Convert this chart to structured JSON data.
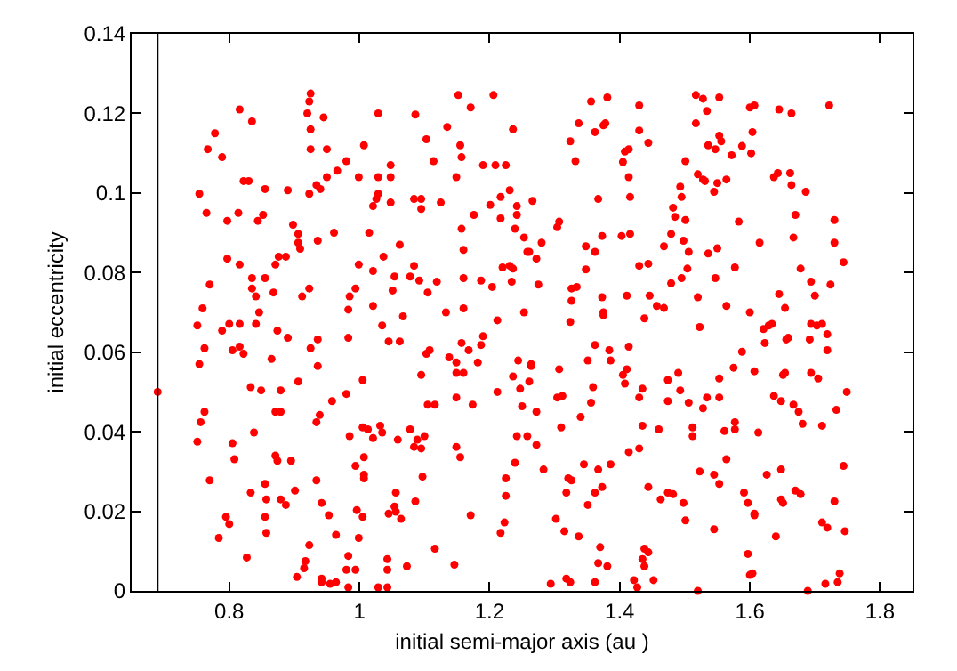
{
  "chart_data": {
    "type": "scatter",
    "xlabel": "initial semi-major axis (au )",
    "ylabel": "initial eccentricity",
    "x": [
      0.754,
      0.765,
      0.767,
      0.778,
      0.789,
      0.816,
      0.835,
      0.822,
      0.83,
      0.797,
      0.814,
      0.855,
      0.852,
      0.844,
      0.797,
      0.816,
      0.77,
      0.835,
      0.855,
      0.835,
      0.841,
      0.868,
      0.759,
      0.846,
      0.89,
      0.898,
      0.876,
      0.887,
      0.871,
      0.906,
      0.906,
      0.909,
      0.92,
      0.923,
      0.925,
      0.925,
      0.925,
      0.945,
      0.95,
      0.923,
      0.934,
      0.94,
      0.95,
      0.966,
      0.98,
      1.007,
      0.999,
      1.029,
      1.029,
      1.048,
      1.048,
      1.029,
      1.026,
      1.021,
      1.048,
      0.961,
      0.936,
      1.015,
      1.062,
      1.037,
      0.999,
      1.021,
      1.054,
      1.051,
      0.923,
      0.912,
      0.994,
      0.985,
      0.983,
      1.021,
      1.067,
      1.086,
      1.103,
      1.114,
      1.135,
      1.152,
      1.171,
      1.155,
      1.157,
      1.149,
      1.206,
      1.236,
      1.19,
      1.209,
      1.225,
      1.084,
      1.095,
      1.095,
      1.125,
      1.217,
      1.231,
      1.201,
      1.242,
      1.176,
      1.217,
      1.242,
      1.157,
      1.239,
      1.253,
      1.16,
      1.258,
      1.084,
      1.092,
      1.078,
      1.119,
      1.105,
      1.16,
      1.187,
      1.204,
      1.22,
      1.231,
      1.236,
      1.234,
      1.133,
      1.16,
      1.253,
      1.356,
      1.381,
      1.43,
      1.337,
      1.324,
      1.332,
      1.362,
      1.375,
      1.378,
      1.43,
      1.444,
      1.408,
      1.414,
      1.405,
      1.414,
      1.367,
      1.416,
      1.517,
      1.528,
      1.553,
      1.534,
      1.517,
      1.6,
      1.607,
      1.645,
      1.664,
      1.722,
      1.553,
      1.556,
      1.536,
      1.547,
      1.588,
      1.604,
      1.572,
      1.602,
      1.501,
      1.52,
      1.528,
      1.531,
      1.55,
      1.564,
      1.545,
      1.493,
      1.495,
      1.643,
      1.637,
      1.662,
      1.664,
      1.686,
      1.266,
      1.307,
      1.304,
      1.28,
      1.261,
      1.272,
      1.275,
      1.348,
      1.362,
      1.373,
      1.403,
      1.416,
      1.348,
      1.43,
      1.444,
      1.326,
      1.334,
      1.326,
      1.373,
      1.411,
      1.375,
      1.446,
      1.457,
      1.468,
      1.438,
      1.479,
      1.495,
      1.504,
      1.468,
      1.479,
      1.498,
      1.506,
      1.501,
      1.485,
      1.482,
      1.52,
      1.536,
      1.55,
      1.547,
      1.564,
      1.577,
      1.583,
      1.6,
      1.615,
      1.645,
      1.654,
      1.667,
      1.67,
      1.678,
      1.694,
      1.7,
      1.724,
      1.73,
      1.73,
      1.744,
      0.69,
      0.751,
      0.762,
      0.754,
      0.762,
      0.756,
      0.751,
      0.77,
      0.789,
      0.8,
      0.816,
      0.805,
      0.816,
      0.822,
      0.841,
      0.833,
      0.849,
      0.838,
      0.805,
      0.808,
      0.833,
      0.795,
      0.8,
      0.784,
      0.827,
      0.855,
      0.857,
      0.855,
      0.857,
      0.874,
      0.89,
      0.865,
      0.879,
      0.871,
      0.879,
      0.871,
      0.874,
      0.895,
      0.879,
      0.887,
      0.901,
      0.906,
      0.925,
      0.936,
      0.936,
      0.939,
      0.934,
      0.934,
      0.942,
      0.953,
      0.958,
      0.923,
      0.917,
      0.915,
      0.904,
      0.942,
      0.942,
      0.955,
      0.964,
      0.964,
      0.983,
      0.98,
      0.985,
      0.994,
      0.996,
      1.005,
      0.999,
      0.983,
      0.98,
      0.994,
      0.983,
      1.005,
      1.005,
      1.013,
      1.007,
      1.007,
      1.007,
      1.021,
      1.032,
      1.035,
      1.035,
      1.045,
      1.062,
      1.059,
      1.056,
      1.054,
      1.045,
      1.056,
      1.064,
      1.043,
      1.043,
      1.029,
      1.043,
      1.073,
      1.078,
      1.084,
      1.089,
      1.095,
      1.1,
      1.097,
      1.086,
      1.095,
      1.105,
      1.108,
      1.103,
      1.116,
      1.116,
      1.138,
      1.149,
      1.149,
      1.16,
      1.157,
      1.168,
      1.182,
      1.187,
      1.19,
      1.149,
      1.174,
      1.149,
      1.155,
      1.171,
      1.146,
      1.212,
      1.212,
      1.217,
      1.223,
      1.225,
      1.225,
      1.239,
      1.242,
      1.236,
      1.247,
      1.25,
      1.244,
      1.261,
      1.264,
      1.324,
      1.375,
      1.523,
      1.621,
      1.629,
      1.634,
      1.694,
      1.703,
      1.711,
      1.656,
      1.659,
      1.719,
      1.623,
      1.692,
      1.719,
      1.362,
      1.384,
      1.414,
      1.386,
      1.588,
      1.264,
      1.351,
      1.307,
      1.411,
      1.405,
      1.408,
      1.359,
      1.435,
      1.43,
      1.474,
      1.49,
      1.493,
      1.553,
      1.575,
      1.607,
      1.654,
      1.651,
      1.694,
      1.705,
      1.749,
      1.637,
      1.648,
      1.667,
      1.675,
      1.681,
      1.711,
      1.733,
      1.272,
      1.304,
      1.312,
      1.34,
      1.356,
      1.474,
      1.506,
      1.528,
      1.534,
      1.553,
      1.31,
      1.435,
      1.46,
      1.512,
      1.512,
      1.561,
      1.577,
      1.577,
      1.613,
      1.414,
      1.43,
      1.258,
      1.272,
      1.283,
      1.345,
      1.367,
      1.386,
      1.321,
      1.326,
      1.318,
      1.362,
      1.373,
      1.351,
      1.444,
      1.463,
      1.474,
      1.482,
      1.498,
      1.523,
      1.545,
      1.553,
      1.564,
      1.591,
      1.597,
      1.626,
      1.648,
      1.648,
      1.651,
      1.67,
      1.678,
      1.744,
      1.73,
      1.302,
      1.315,
      1.337,
      1.501,
      1.545,
      1.607,
      1.607,
      1.64,
      1.711,
      1.719,
      1.746,
      1.37,
      1.367,
      1.381,
      1.438,
      1.444,
      1.435,
      1.438,
      1.597,
      1.6,
      1.604,
      1.738,
      1.735,
      1.716,
      1.294,
      1.318,
      1.324,
      1.362,
      1.422,
      1.427,
      1.452,
      1.52,
      1.689
    ],
    "values": [
      0.0998,
      0.095,
      0.111,
      0.115,
      0.109,
      0.121,
      0.118,
      0.103,
      0.103,
      0.093,
      0.095,
      0.101,
      0.0945,
      0.093,
      0.0835,
      0.082,
      0.077,
      0.0786,
      0.0786,
      0.076,
      0.074,
      0.075,
      0.071,
      0.07,
      0.1007,
      0.092,
      0.084,
      0.084,
      0.082,
      0.0897,
      0.0875,
      0.086,
      0.12,
      0.123,
      0.125,
      0.116,
      0.111,
      0.119,
      0.111,
      0.0998,
      0.102,
      0.101,
      0.104,
      0.1056,
      0.108,
      0.112,
      0.104,
      0.12,
      0.104,
      0.107,
      0.104,
      0.0998,
      0.0985,
      0.0967,
      0.0976,
      0.09,
      0.088,
      0.09,
      0.087,
      0.084,
      0.082,
      0.0804,
      0.079,
      0.0755,
      0.076,
      0.074,
      0.076,
      0.074,
      0.0707,
      0.0716,
      0.069,
      0.1197,
      0.1135,
      0.108,
      0.1166,
      0.1246,
      0.1215,
      0.112,
      0.109,
      0.104,
      0.1246,
      0.116,
      0.107,
      0.107,
      0.107,
      0.0985,
      0.0985,
      0.096,
      0.0976,
      0.099,
      0.1007,
      0.097,
      0.0967,
      0.0945,
      0.0936,
      0.0945,
      0.091,
      0.091,
      0.0888,
      0.0857,
      0.0852,
      0.0817,
      0.078,
      0.079,
      0.0777,
      0.075,
      0.0786,
      0.078,
      0.0764,
      0.0813,
      0.0817,
      0.081,
      0.0777,
      0.07,
      0.071,
      0.07,
      0.123,
      0.124,
      0.122,
      0.1175,
      0.113,
      0.108,
      0.1153,
      0.117,
      0.1175,
      0.1157,
      0.1126,
      0.1104,
      0.111,
      0.1078,
      0.104,
      0.0985,
      0.099,
      0.1246,
      0.1237,
      0.124,
      0.1206,
      0.1175,
      0.1215,
      0.122,
      0.121,
      0.12,
      0.122,
      0.1144,
      0.113,
      0.112,
      0.111,
      0.1118,
      0.1153,
      0.1095,
      0.11,
      0.108,
      0.1047,
      0.1034,
      0.103,
      0.1025,
      0.1034,
      0.1003,
      0.1016,
      0.099,
      0.105,
      0.104,
      0.105,
      0.102,
      0.1003,
      0.098,
      0.0928,
      0.0914,
      0.0875,
      0.0852,
      0.0835,
      0.077,
      0.0866,
      0.0852,
      0.0892,
      0.0892,
      0.0897,
      0.0808,
      0.0817,
      0.0822,
      0.076,
      0.0764,
      0.0729,
      0.0738,
      0.0742,
      0.07,
      0.0742,
      0.0716,
      0.0711,
      0.0685,
      0.0773,
      0.0786,
      0.081,
      0.0866,
      0.0897,
      0.088,
      0.0852,
      0.0932,
      0.094,
      0.0963,
      0.0738,
      0.0848,
      0.0861,
      0.0786,
      0.0716,
      0.0813,
      0.0928,
      0.07,
      0.0875,
      0.0746,
      0.0711,
      0.0888,
      0.0945,
      0.081,
      0.0777,
      0.0742,
      0.077,
      0.0932,
      0.0875,
      0.0826,
      0.05,
      0.0667,
      0.061,
      0.057,
      0.045,
      0.0424,
      0.0375,
      0.0278,
      0.0654,
      0.0671,
      0.0671,
      0.0605,
      0.0614,
      0.0596,
      0.0671,
      0.0512,
      0.0504,
      0.0398,
      0.0371,
      0.0331,
      0.0247,
      0.0186,
      0.0168,
      0.0133,
      0.0084,
      0.0269,
      0.023,
      0.0186,
      0.0146,
      0.0654,
      0.0636,
      0.0583,
      0.0504,
      0.045,
      0.045,
      0.034,
      0.0327,
      0.0327,
      0.023,
      0.0216,
      0.0252,
      0.0526,
      0.061,
      0.0632,
      0.0565,
      0.0442,
      0.0424,
      0.0278,
      0.0221,
      0.019,
      0.0477,
      0.0115,
      0.0075,
      0.0057,
      0.0035,
      0.0031,
      0.0022,
      0.0018,
      0.0022,
      0.0141,
      0.0636,
      0.0495,
      0.0389,
      0.0314,
      0.0203,
      0.0186,
      0.0133,
      0.0088,
      0.0053,
      0.0053,
      0.0009,
      0.053,
      0.0411,
      0.0406,
      0.0336,
      0.0292,
      0.0283,
      0.0384,
      0.0415,
      0.0398,
      0.0667,
      0.0627,
      0.0627,
      0.038,
      0.0247,
      0.0212,
      0.0194,
      0.0199,
      0.0181,
      0.008,
      0.0053,
      0.0009,
      0.0009,
      0.0062,
      0.0406,
      0.0362,
      0.038,
      0.0358,
      0.0389,
      0.0287,
      0.0225,
      0.0543,
      0.0468,
      0.0605,
      0.0596,
      0.0468,
      0.0106,
      0.0587,
      0.0574,
      0.0548,
      0.0548,
      0.0623,
      0.0605,
      0.0574,
      0.0618,
      0.064,
      0.0486,
      0.0468,
      0.0362,
      0.0336,
      0.019,
      0.0066,
      0.068,
      0.05,
      0.0146,
      0.0172,
      0.0239,
      0.0283,
      0.0322,
      0.0389,
      0.0539,
      0.0508,
      0.0464,
      0.0579,
      0.0526,
      0.057,
      0.0676,
      0.0693,
      0.0663,
      0.0658,
      0.0667,
      0.0671,
      0.0671,
      0.0667,
      0.0671,
      0.0632,
      0.0636,
      0.0645,
      0.0623,
      0.0632,
      0.0605,
      0.0618,
      0.0605,
      0.0614,
      0.0579,
      0.0601,
      0.0565,
      0.0579,
      0.0557,
      0.0557,
      0.0543,
      0.0521,
      0.0512,
      0.0508,
      0.0486,
      0.053,
      0.0548,
      0.0504,
      0.0534,
      0.0561,
      0.0552,
      0.0548,
      0.0543,
      0.0548,
      0.0534,
      0.05,
      0.049,
      0.0477,
      0.0468,
      0.045,
      0.042,
      0.0415,
      0.0455,
      0.045,
      0.0486,
      0.049,
      0.0437,
      0.0473,
      0.0477,
      0.0473,
      0.0459,
      0.0486,
      0.0486,
      0.0411,
      0.0415,
      0.0406,
      0.0411,
      0.0389,
      0.0402,
      0.0406,
      0.0424,
      0.0398,
      0.0349,
      0.0358,
      0.0389,
      0.0367,
      0.0305,
      0.0318,
      0.0305,
      0.0318,
      0.0283,
      0.0278,
      0.0247,
      0.0247,
      0.0261,
      0.0216,
      0.0261,
      0.023,
      0.0247,
      0.0243,
      0.0221,
      0.03,
      0.0292,
      0.0269,
      0.0331,
      0.0247,
      0.0221,
      0.0292,
      0.0305,
      0.023,
      0.0221,
      0.0252,
      0.0243,
      0.0314,
      0.0225,
      0.0181,
      0.015,
      0.0137,
      0.0177,
      0.0155,
      0.0194,
      0.019,
      0.0137,
      0.0172,
      0.0159,
      0.015,
      0.011,
      0.007,
      0.0062,
      0.0106,
      0.0097,
      0.008,
      0.0062,
      0.0093,
      0.004,
      0.0044,
      0.0044,
      0.0022,
      0.0018,
      0.0018,
      0.0031,
      0.0022,
      0.0022,
      0.0027,
      0.0009,
      0.0027,
      0,
      0
    ],
    "color": "#ff0000",
    "marker": "circle",
    "xlim": [
      0.65,
      1.85
    ],
    "xticks": [
      0.8,
      1,
      1.2,
      1.4,
      1.6,
      1.8
    ],
    "ylim": [
      0,
      0.14
    ],
    "yticks": [
      0,
      0.02,
      0.04,
      0.06,
      0.08,
      0.1,
      0.12,
      0.14
    ],
    "ref_lines": [
      {
        "axis": "x",
        "value": 0.69,
        "color": "#000000"
      }
    ],
    "grid": false
  }
}
